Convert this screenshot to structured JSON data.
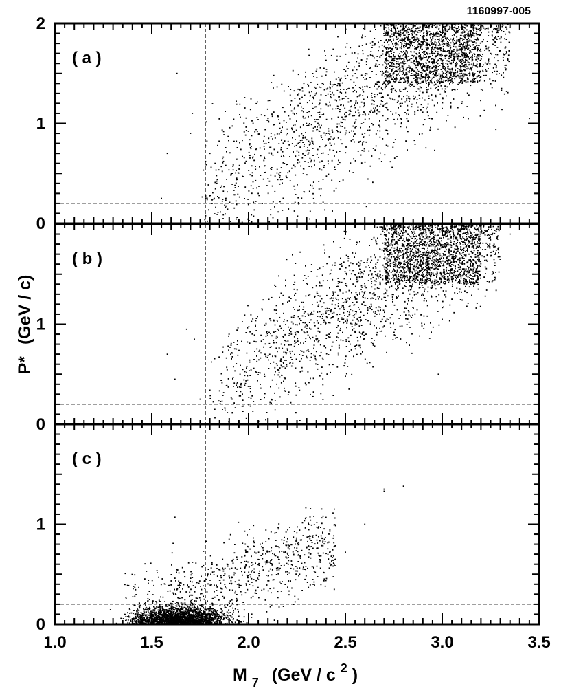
{
  "figure_id": "1160997-005",
  "ylabel": {
    "main": "P*",
    "unit": "(GeV / c)"
  },
  "xlabel": {
    "main": "M",
    "sub": "7",
    "unit_pre": "(GeV / c",
    "unit_sup": "2",
    "unit_post": ")"
  },
  "chart_data": [
    {
      "type": "scatter",
      "panel_label": "( a )",
      "xlim": [
        1.0,
        3.5
      ],
      "ylim": [
        0,
        2
      ],
      "yticks": [
        0,
        1,
        2
      ],
      "cut_lines": {
        "x": 1.777,
        "y": 0.2
      },
      "density_regions": [
        {
          "x_range": [
            1.75,
            3.35
          ],
          "y_band_center_at_x": [
            [
              1.75,
              0.3
            ],
            [
              2.5,
              1.15
            ],
            [
              3.2,
              2.0
            ]
          ],
          "spread": 0.35,
          "n": 2200
        },
        {
          "x_range": [
            2.7,
            3.2
          ],
          "y_range": [
            1.4,
            2.0
          ],
          "n": 1200
        }
      ],
      "sample_points": [
        [
          1.55,
          0.25
        ],
        [
          1.58,
          0.7
        ],
        [
          1.63,
          1.5
        ],
        [
          1.7,
          0.9
        ],
        [
          1.71,
          1.1
        ],
        [
          1.88,
          0.25
        ],
        [
          2.05,
          0.3
        ],
        [
          2.2,
          0.75
        ],
        [
          2.6,
          0.9
        ],
        [
          3.25,
          1.7
        ],
        [
          3.45,
          1.05
        ]
      ]
    },
    {
      "type": "scatter",
      "panel_label": "( b )",
      "xlim": [
        1.0,
        3.5
      ],
      "ylim": [
        0,
        2
      ],
      "yticks": [
        0,
        1
      ],
      "cut_lines": {
        "x": 1.777,
        "y": 0.2
      },
      "density_regions": [
        {
          "x_range": [
            1.8,
            3.3
          ],
          "y_band_center_at_x": [
            [
              1.8,
              0.3
            ],
            [
              2.5,
              1.2
            ],
            [
              3.2,
              2.0
            ]
          ],
          "spread": 0.33,
          "n": 2100
        },
        {
          "x_range": [
            2.7,
            3.2
          ],
          "y_range": [
            1.4,
            2.0
          ],
          "n": 1300
        }
      ],
      "sample_points": [
        [
          1.58,
          0.7
        ],
        [
          1.62,
          0.45
        ],
        [
          1.68,
          0.95
        ],
        [
          1.72,
          0.85
        ],
        [
          1.75,
          0.25
        ],
        [
          2.5,
          0.48
        ],
        [
          2.98,
          0.5
        ],
        [
          3.05,
          1.25
        ],
        [
          3.35,
          1.9
        ]
      ]
    },
    {
      "type": "scatter",
      "panel_label": "( c )",
      "xlim": [
        1.0,
        3.5
      ],
      "ylim": [
        0,
        2
      ],
      "yticks": [
        0,
        1
      ],
      "cut_lines": {
        "x": 1.777,
        "y": 0.2
      },
      "density_regions": [
        {
          "x_range": [
            1.35,
            1.95
          ],
          "y_range": [
            0.0,
            0.2
          ],
          "center": [
            1.65,
            0.05
          ],
          "n": 1900
        },
        {
          "x_range": [
            1.35,
            2.45
          ],
          "y_band_center_at_x": [
            [
              1.4,
              0.15
            ],
            [
              2.4,
              0.75
            ]
          ],
          "spread": 0.2,
          "n": 800
        }
      ],
      "sample_points": [
        [
          2.7,
          1.35
        ],
        [
          2.7,
          1.33
        ],
        [
          2.8,
          1.38
        ],
        [
          2.6,
          1.0
        ],
        [
          2.42,
          0.93
        ],
        [
          2.5,
          0.72
        ],
        [
          1.98,
          0.93
        ],
        [
          1.62,
          1.07
        ]
      ]
    }
  ],
  "xticks": [
    "1.0",
    "1.5",
    "2.0",
    "2.5",
    "3.0",
    "3.5"
  ],
  "ytick_labels": {
    "0": "0",
    "1": "1",
    "2": "2"
  }
}
